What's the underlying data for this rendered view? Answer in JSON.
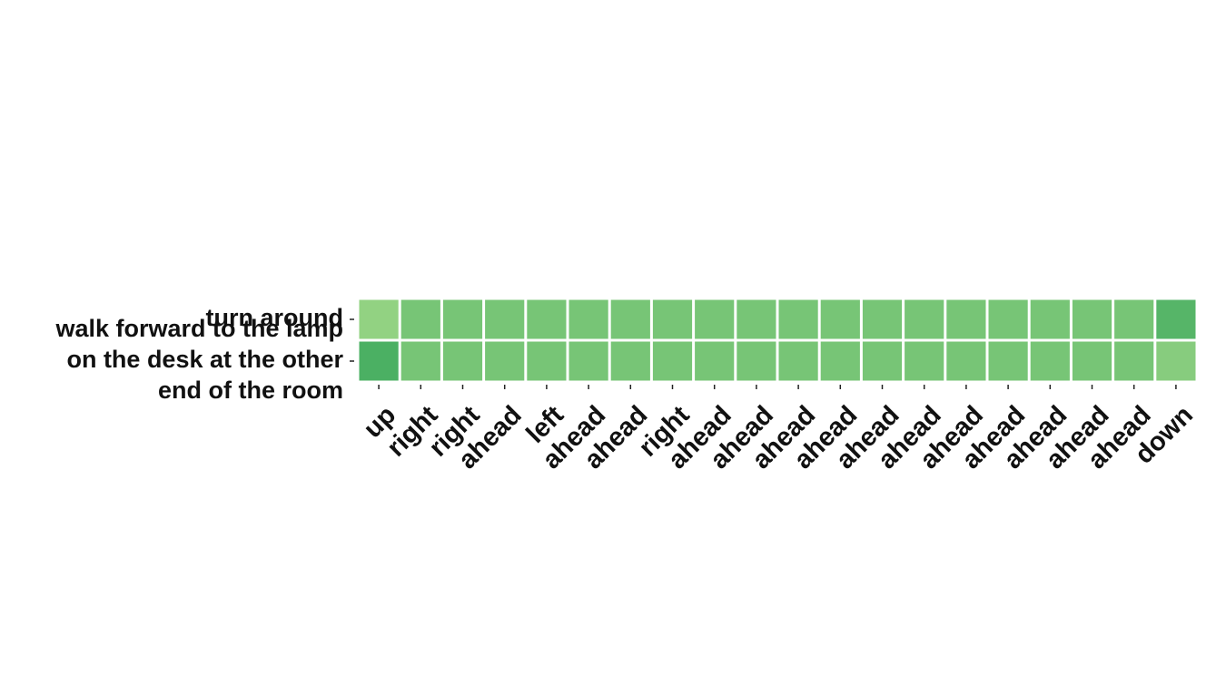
{
  "chart_data": {
    "type": "heatmap",
    "title": "",
    "xlabel": "",
    "ylabel": "",
    "rows": [
      [
        "turn around"
      ],
      [
        "walk forward to the lamp",
        "on the desk at the other",
        "end of the room"
      ]
    ],
    "columns": [
      "up",
      "right",
      "right",
      "ahead",
      "left",
      "ahead",
      "ahead",
      "right",
      "ahead",
      "ahead",
      "ahead",
      "ahead",
      "ahead",
      "ahead",
      "ahead",
      "ahead",
      "ahead",
      "ahead",
      "ahead",
      "down"
    ],
    "values": [
      [
        0.2,
        0.45,
        0.45,
        0.45,
        0.45,
        0.45,
        0.45,
        0.45,
        0.45,
        0.45,
        0.45,
        0.45,
        0.45,
        0.45,
        0.45,
        0.45,
        0.45,
        0.45,
        0.45,
        0.75
      ],
      [
        0.85,
        0.45,
        0.45,
        0.45,
        0.45,
        0.45,
        0.45,
        0.45,
        0.45,
        0.45,
        0.45,
        0.45,
        0.45,
        0.45,
        0.45,
        0.45,
        0.45,
        0.45,
        0.45,
        0.3
      ]
    ],
    "colormap": {
      "low": "#a8dc8c",
      "high": "#3aa85c"
    },
    "colorbar": false,
    "grid": false
  }
}
